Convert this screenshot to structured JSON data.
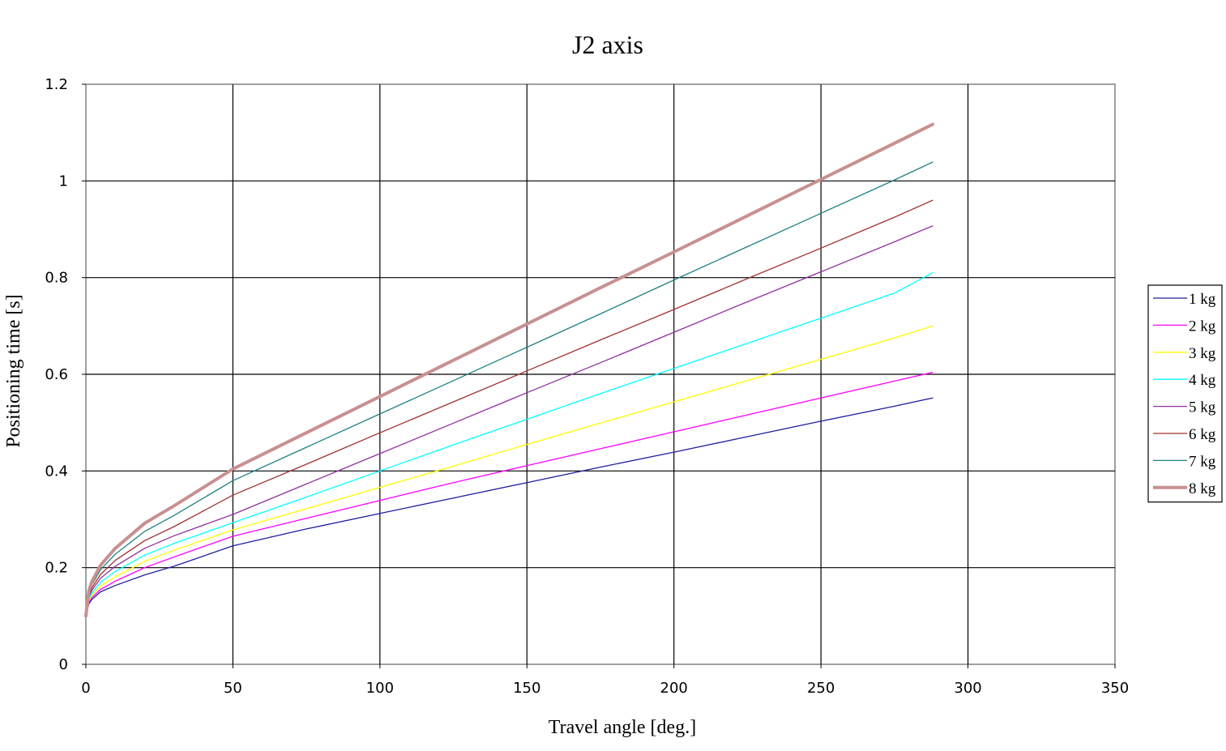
{
  "chart_data": {
    "type": "line",
    "title": "J2 axis",
    "xlabel": "Travel angle [deg.]",
    "ylabel": "Positioning time [s]",
    "xlim": [
      0,
      350
    ],
    "ylim": [
      0,
      1.2
    ],
    "x_ticks": [
      "0",
      "50",
      "100",
      "150",
      "200",
      "250",
      "300",
      "350"
    ],
    "y_ticks": [
      "0",
      "0.2",
      "0.4",
      "0.6",
      "0.8",
      "1",
      "1.2"
    ],
    "grid": true,
    "legend_position": "right",
    "x": [
      0,
      1,
      2,
      5,
      10,
      20,
      30,
      50,
      75,
      100,
      125,
      150,
      175,
      200,
      225,
      250,
      275,
      288
    ],
    "series": [
      {
        "name": "1 kg",
        "color": "#1f1fa0",
        "width": 1.3,
        "values": [
          0.1,
          0.125,
          0.134,
          0.15,
          0.163,
          0.185,
          0.203,
          0.245,
          0.28,
          0.312,
          0.344,
          0.376,
          0.408,
          0.439,
          0.471,
          0.503,
          0.534,
          0.551
        ]
      },
      {
        "name": "2 kg",
        "color": "#ff00ff",
        "width": 1.3,
        "values": [
          0.1,
          0.128,
          0.138,
          0.155,
          0.172,
          0.2,
          0.222,
          0.265,
          0.302,
          0.339,
          0.376,
          0.411,
          0.446,
          0.481,
          0.516,
          0.551,
          0.586,
          0.604
        ]
      },
      {
        "name": "3 kg",
        "color": "#ffff00",
        "width": 1.3,
        "values": [
          0.1,
          0.131,
          0.142,
          0.162,
          0.181,
          0.213,
          0.236,
          0.278,
          0.322,
          0.366,
          0.41,
          0.455,
          0.499,
          0.543,
          0.587,
          0.631,
          0.675,
          0.7
        ]
      },
      {
        "name": "4 kg",
        "color": "#00ffff",
        "width": 1.3,
        "values": [
          0.1,
          0.135,
          0.147,
          0.17,
          0.192,
          0.226,
          0.25,
          0.293,
          0.346,
          0.4,
          0.454,
          0.507,
          0.56,
          0.612,
          0.664,
          0.716,
          0.768,
          0.81
        ]
      },
      {
        "name": "5 kg",
        "color": "#9030a0",
        "width": 1.3,
        "values": [
          0.1,
          0.139,
          0.153,
          0.178,
          0.203,
          0.24,
          0.266,
          0.31,
          0.373,
          0.436,
          0.499,
          0.562,
          0.624,
          0.687,
          0.75,
          0.812,
          0.874,
          0.907
        ]
      },
      {
        "name": "6 kg",
        "color": "#a03030",
        "width": 1.3,
        "values": [
          0.1,
          0.143,
          0.158,
          0.186,
          0.215,
          0.256,
          0.285,
          0.35,
          0.414,
          0.479,
          0.543,
          0.607,
          0.671,
          0.734,
          0.798,
          0.861,
          0.925,
          0.96
        ]
      },
      {
        "name": "7 kg",
        "color": "#208080",
        "width": 1.3,
        "values": [
          0.1,
          0.147,
          0.164,
          0.196,
          0.228,
          0.275,
          0.308,
          0.38,
          0.449,
          0.518,
          0.587,
          0.656,
          0.725,
          0.795,
          0.864,
          0.933,
          1.002,
          1.039
        ]
      },
      {
        "name": "8 kg",
        "color": "#c89090",
        "width": 4,
        "values": [
          0.1,
          0.152,
          0.171,
          0.205,
          0.24,
          0.292,
          0.328,
          0.404,
          0.479,
          0.554,
          0.629,
          0.704,
          0.779,
          0.853,
          0.928,
          1.003,
          1.078,
          1.117
        ]
      }
    ]
  }
}
